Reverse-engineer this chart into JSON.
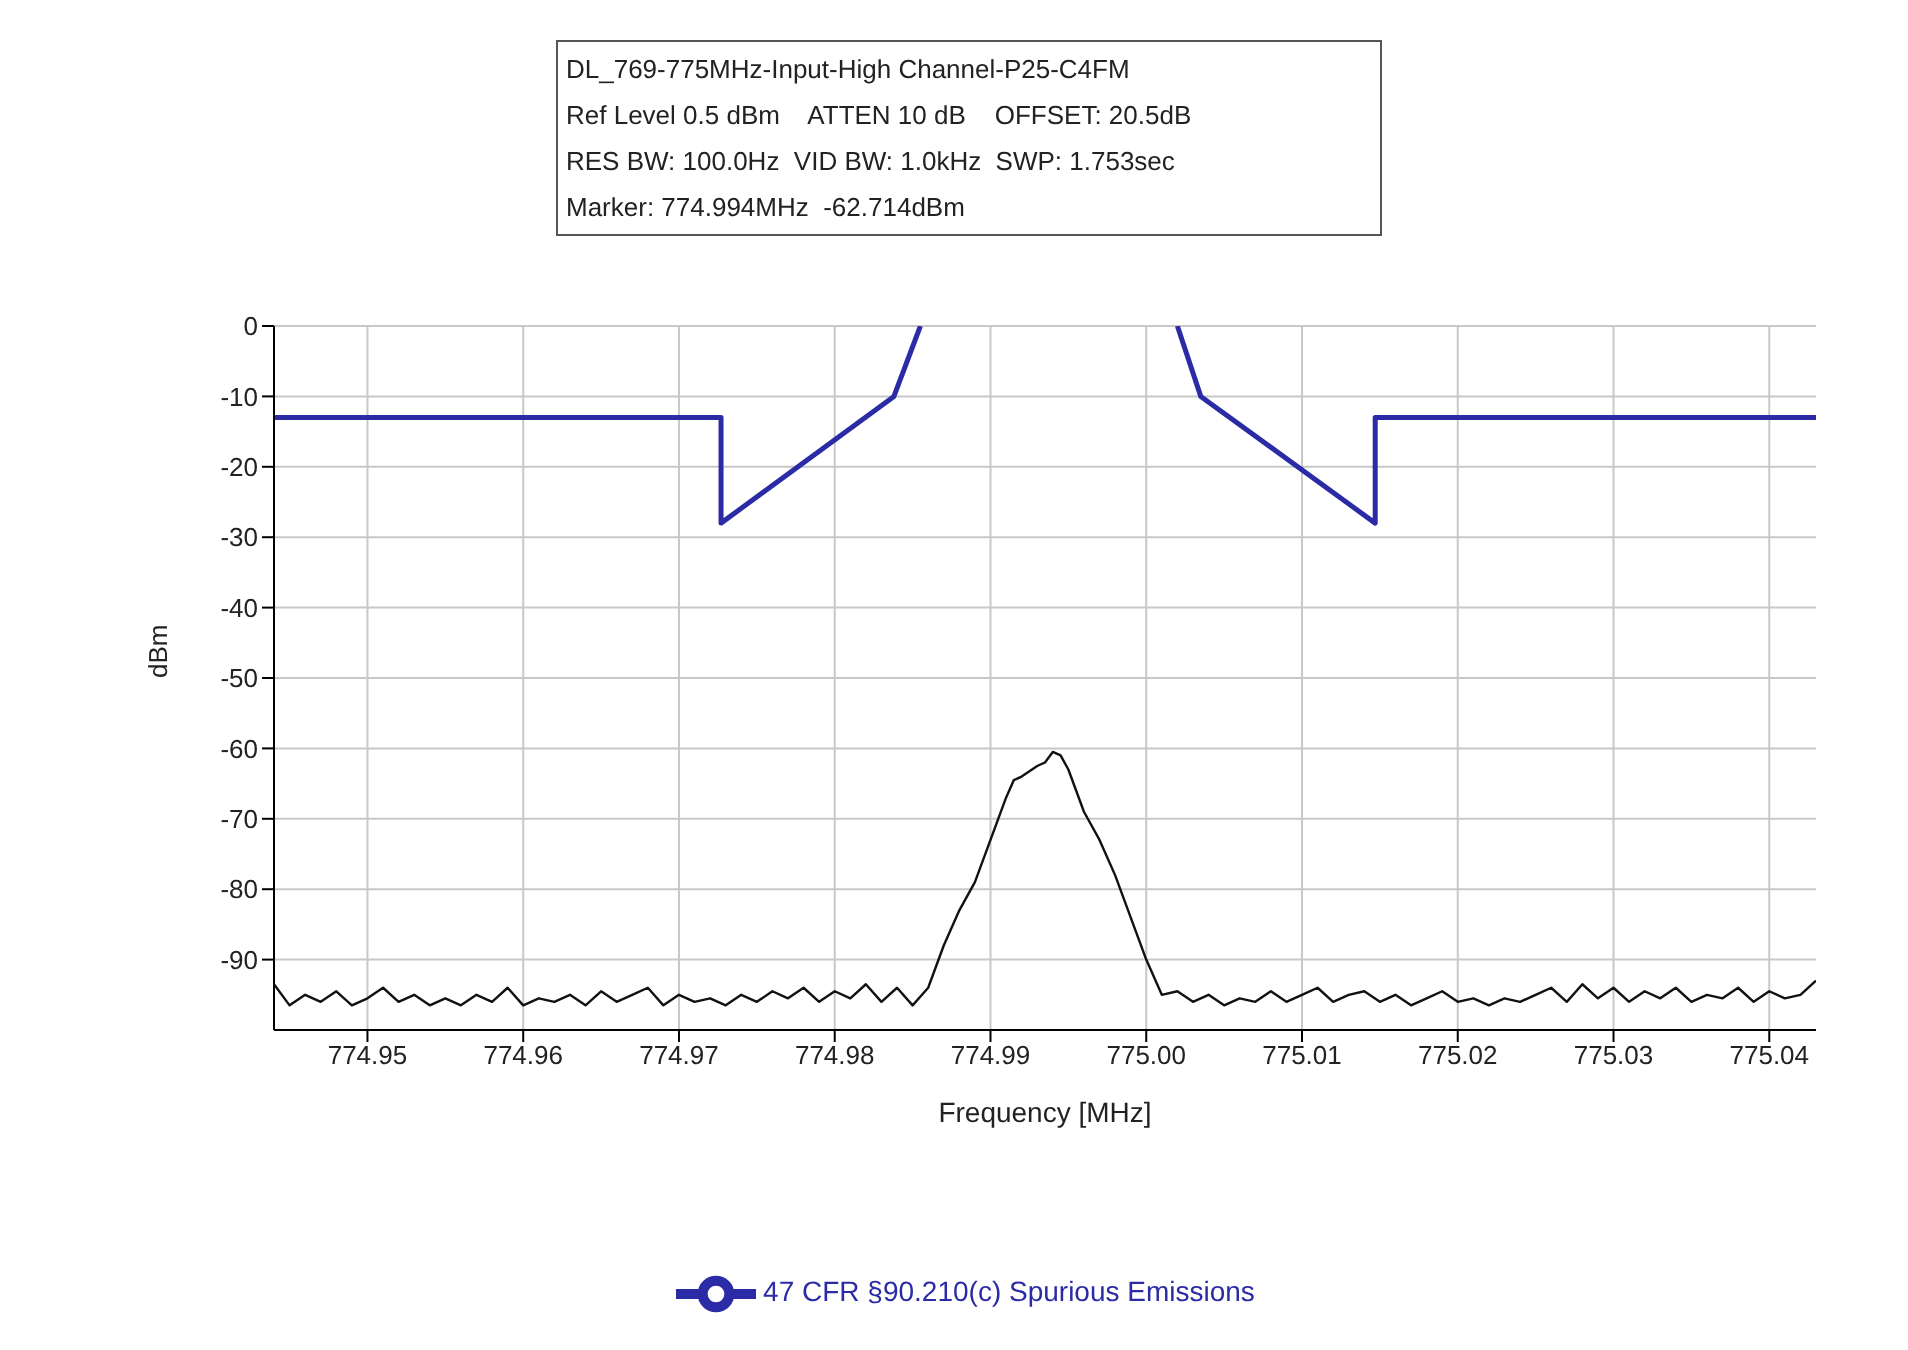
{
  "chart_data": {
    "type": "line",
    "title": "DL_769-775MHz-Input-High Channel-P25-C4FM",
    "annotations": [
      "Ref Level 0.5 dBm    ATTEN 10 dB    OFFSET: 20.5dB",
      "RES BW: 100.0Hz  VID BW: 1.0kHz  SWP: 1.753sec",
      "Marker: 774.994MHz  -62.714dBm"
    ],
    "xlabel": "Frequency [MHz]",
    "ylabel": "dBm",
    "xlim": [
      774.944,
      775.043
    ],
    "xticks": [
      774.95,
      774.96,
      774.97,
      774.98,
      774.99,
      {
        "value": 775,
        "label": "775.00"
      },
      775.01,
      775.02,
      775.03,
      775.04
    ],
    "ylim": [
      -100,
      0
    ],
    "yticks": [
      0,
      -10,
      -20,
      -30,
      -40,
      -50,
      -60,
      -70,
      -80,
      -90
    ],
    "grid": true,
    "legend": "bottom",
    "marker": "none",
    "line_style": "solid",
    "series": [
      {
        "name": "47 CFR §90.210(c) Spurious Emissions",
        "color": "#2b2ba6",
        "x": [
          774.944,
          774.9727,
          774.9727,
          774.9838,
          774.9855,
          774.993,
          775.002,
          775.0035,
          775.0147,
          775.0147,
          775.043
        ],
        "values": [
          -13,
          -13,
          -28,
          -10,
          0,
          null,
          0,
          -10,
          -28,
          -13,
          -13
        ]
      },
      {
        "color": "#111111",
        "x": [
          774.944,
          774.945,
          774.946,
          774.947,
          774.948,
          774.949,
          774.95,
          774.951,
          774.952,
          774.953,
          774.954,
          774.955,
          774.956,
          774.957,
          774.958,
          774.959,
          774.96,
          774.961,
          774.962,
          774.963,
          774.964,
          774.965,
          774.966,
          774.967,
          774.968,
          774.969,
          774.97,
          774.971,
          774.972,
          774.973,
          774.974,
          774.975,
          774.976,
          774.977,
          774.978,
          774.979,
          774.98,
          774.981,
          774.982,
          774.983,
          774.984,
          774.985,
          774.986,
          774.987,
          774.988,
          774.989,
          774.99,
          774.991,
          774.9915,
          774.992,
          774.993,
          774.9935,
          774.994,
          774.9945,
          774.995,
          774.996,
          774.997,
          774.998,
          774.999,
          775,
          775.001,
          775.002,
          775.003,
          775.004,
          775.005,
          775.006,
          775.007,
          775.008,
          775.009,
          775.01,
          775.011,
          775.012,
          775.013,
          775.014,
          775.015,
          775.016,
          775.017,
          775.018,
          775.019,
          775.02,
          775.021,
          775.022,
          775.023,
          775.024,
          775.025,
          775.026,
          775.027,
          775.028,
          775.029,
          775.03,
          775.031,
          775.032,
          775.033,
          775.034,
          775.035,
          775.036,
          775.037,
          775.038,
          775.039,
          775.04,
          775.041,
          775.042,
          775.043
        ],
        "values": [
          -93.5,
          -96.5,
          -95,
          -96,
          -94.5,
          -96.5,
          -95.5,
          -94,
          -96,
          -95,
          -96.5,
          -95.5,
          -96.5,
          -95,
          -96,
          -94,
          -96.5,
          -95.5,
          -96,
          -95,
          -96.5,
          -94.5,
          -96,
          -95,
          -94,
          -96.5,
          -95,
          -96,
          -95.5,
          -96.5,
          -95,
          -96,
          -94.5,
          -95.5,
          -94,
          -96,
          -94.5,
          -95.5,
          -93.5,
          -96,
          -94,
          -96.5,
          -94,
          -88,
          -83,
          -79,
          -73,
          -67,
          -64.5,
          -64,
          -62.5,
          -62,
          -60.5,
          -61,
          -63,
          -69,
          -73,
          -78,
          -84,
          -90,
          -95,
          -94.5,
          -96,
          -95,
          -96.5,
          -95.5,
          -96,
          -94.5,
          -96,
          -95,
          -94,
          -96,
          -95,
          -94.5,
          -96,
          -95,
          -96.5,
          -95.5,
          -94.5,
          -96,
          -95.5,
          -96.5,
          -95.5,
          -96,
          -95,
          -94,
          -96,
          -93.5,
          -95.5,
          -94,
          -96,
          -94.5,
          -95.5,
          -94,
          -96,
          -95,
          -95.5,
          -94,
          -96,
          -94.5,
          -95.5,
          -95,
          -93
        ]
      }
    ]
  }
}
